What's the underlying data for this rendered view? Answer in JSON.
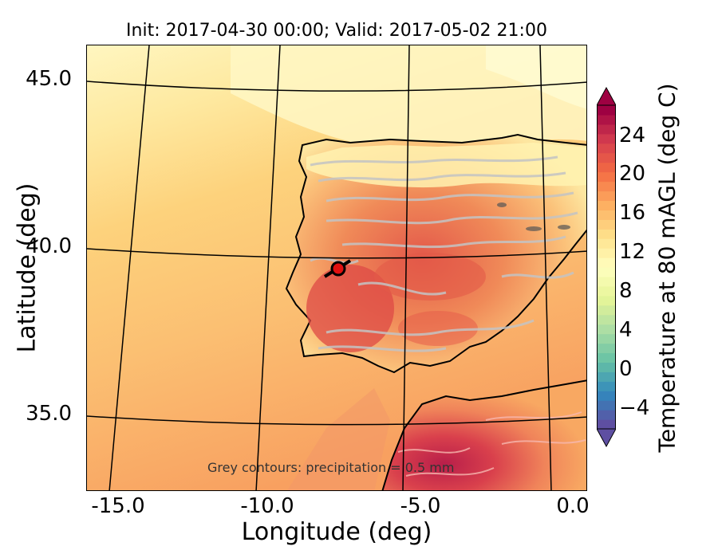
{
  "title": "Init: 2017-04-30 00:00; Valid: 2017-05-02 21:00",
  "axes": {
    "xlabel": "Longitude (deg)",
    "ylabel": "Latitude (deg)",
    "xticks": [
      "-15.0",
      "-10.0",
      "-5.0",
      "0.0"
    ],
    "yticks": [
      "45.0",
      "40.0",
      "35.0"
    ]
  },
  "map": {
    "region": "Iberian Peninsula and western Mediterranean",
    "variable": "Temperature at 80 mAGL",
    "marker": "red circle with black crosshair bar near 39.4N, 7.6W",
    "grid": true
  },
  "annotation": "Grey contours: precipitation = 0.5 mm",
  "colorbar": {
    "label": "Temperature at 80 mAGL (deg C)",
    "ticks": [
      "24",
      "20",
      "16",
      "12",
      "8",
      "4",
      "0",
      "−4"
    ],
    "range": [
      -6,
      28
    ],
    "colormap": "Spectral_r"
  },
  "colors": {
    "ocean_north": "#fff3b0",
    "ocean_mid": "#fdd37c",
    "ocean_south": "#f9a862",
    "land_warm": "#e8624a",
    "land_hot": "#c0254a",
    "contour": "#c8c8c8"
  }
}
